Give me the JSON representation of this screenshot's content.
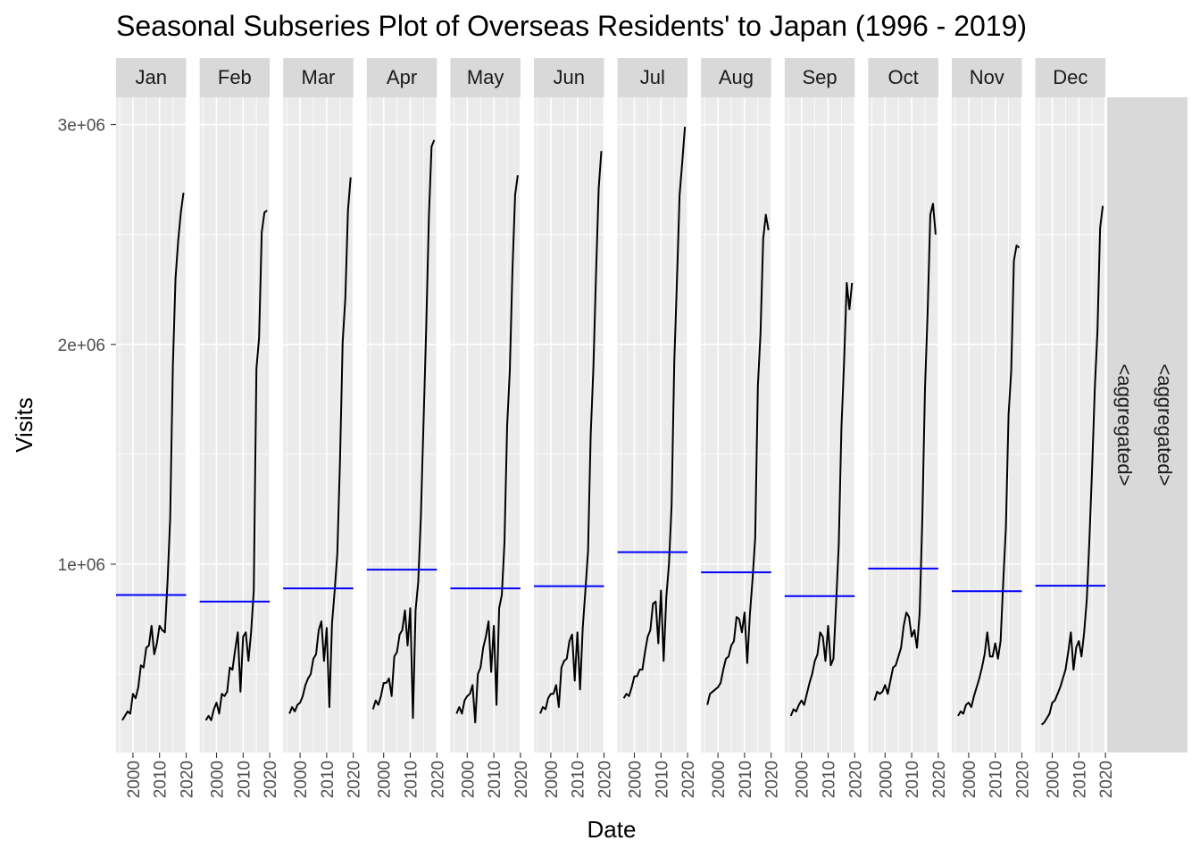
{
  "chart_data": {
    "type": "line",
    "title": "Seasonal Subseries Plot of Overseas Residents' to Japan (1996 - 2019)",
    "xlabel": "Date",
    "ylabel": "Visits",
    "y_ticks": [
      {
        "value": 1000000,
        "label": "1e+06"
      },
      {
        "value": 2000000,
        "label": "2e+06"
      },
      {
        "value": 3000000,
        "label": "3e+06"
      }
    ],
    "x_ticks": [
      {
        "value": 2000,
        "label": "2000"
      },
      {
        "value": 2010,
        "label": "2010"
      },
      {
        "value": 2020,
        "label": "2020"
      }
    ],
    "ylim": [
      150000,
      3120000
    ],
    "xlim": [
      1995,
      2021
    ],
    "grid": true,
    "facet_row_label": "<aggregated>",
    "facet_row_label_2": "<aggregated>",
    "line_color": "#000000",
    "mean_color": "#0000ff",
    "years": [
      1996,
      1997,
      1998,
      1999,
      2000,
      2001,
      2002,
      2003,
      2004,
      2005,
      2006,
      2007,
      2008,
      2009,
      2010,
      2011,
      2012,
      2013,
      2014,
      2015,
      2016,
      2017,
      2018,
      2019
    ],
    "panels": [
      {
        "month": "Jan",
        "mean": 860000,
        "values": [
          290000,
          310000,
          330000,
          320000,
          410000,
          390000,
          440000,
          540000,
          530000,
          620000,
          630000,
          720000,
          590000,
          640000,
          720000,
          700000,
          690000,
          920000,
          1210000,
          1900000,
          2300000,
          2470000,
          2600000,
          2690000
        ]
      },
      {
        "month": "Feb",
        "mean": 830000,
        "values": [
          290000,
          310000,
          290000,
          340000,
          370000,
          320000,
          410000,
          400000,
          420000,
          530000,
          520000,
          610000,
          690000,
          420000,
          670000,
          690000,
          560000,
          690000,
          880000,
          1890000,
          2030000,
          2510000,
          2600000,
          2610000
        ]
      },
      {
        "month": "Mar",
        "mean": 890000,
        "values": [
          320000,
          350000,
          330000,
          360000,
          370000,
          400000,
          450000,
          480000,
          500000,
          570000,
          590000,
          700000,
          740000,
          560000,
          710000,
          350000,
          730000,
          880000,
          1050000,
          1470000,
          2010000,
          2210000,
          2610000,
          2760000
        ]
      },
      {
        "month": "Apr",
        "mean": 975000,
        "values": [
          340000,
          380000,
          360000,
          400000,
          460000,
          460000,
          480000,
          400000,
          580000,
          600000,
          680000,
          700000,
          790000,
          630000,
          800000,
          300000,
          790000,
          920000,
          1220000,
          1650000,
          2080000,
          2580000,
          2900000,
          2930000
        ]
      },
      {
        "month": "May",
        "mean": 890000,
        "values": [
          320000,
          350000,
          320000,
          380000,
          400000,
          410000,
          450000,
          280000,
          500000,
          530000,
          620000,
          670000,
          740000,
          510000,
          720000,
          360000,
          800000,
          860000,
          1100000,
          1630000,
          1880000,
          2340000,
          2680000,
          2770000
        ]
      },
      {
        "month": "Jun",
        "mean": 900000,
        "values": [
          320000,
          350000,
          340000,
          390000,
          410000,
          410000,
          450000,
          350000,
          530000,
          560000,
          570000,
          650000,
          680000,
          470000,
          690000,
          430000,
          710000,
          880000,
          1060000,
          1590000,
          1890000,
          2320000,
          2710000,
          2880000
        ]
      },
      {
        "month": "Jul",
        "mean": 1055000,
        "values": [
          390000,
          410000,
          400000,
          440000,
          490000,
          490000,
          520000,
          520000,
          600000,
          670000,
          700000,
          820000,
          830000,
          640000,
          880000,
          560000,
          850000,
          1000000,
          1270000,
          1920000,
          2290000,
          2680000,
          2830000,
          2990000
        ]
      },
      {
        "month": "Aug",
        "mean": 963000,
        "values": [
          360000,
          410000,
          420000,
          430000,
          440000,
          460000,
          520000,
          570000,
          580000,
          630000,
          650000,
          760000,
          750000,
          690000,
          780000,
          550000,
          770000,
          930000,
          1120000,
          1810000,
          2050000,
          2480000,
          2590000,
          2520000
        ]
      },
      {
        "month": "Sep",
        "mean": 855000,
        "values": [
          310000,
          340000,
          330000,
          360000,
          380000,
          360000,
          410000,
          460000,
          500000,
          560000,
          590000,
          690000,
          670000,
          560000,
          720000,
          540000,
          570000,
          820000,
          1090000,
          1620000,
          1920000,
          2280000,
          2160000,
          2280000
        ]
      },
      {
        "month": "Oct",
        "mean": 980000,
        "values": [
          380000,
          420000,
          410000,
          420000,
          450000,
          410000,
          470000,
          530000,
          540000,
          580000,
          620000,
          720000,
          780000,
          760000,
          670000,
          700000,
          620000,
          780000,
          1210000,
          1800000,
          2150000,
          2590000,
          2640000,
          2500000
        ]
      },
      {
        "month": "Nov",
        "mean": 877000,
        "values": [
          310000,
          330000,
          320000,
          360000,
          370000,
          350000,
          400000,
          440000,
          480000,
          530000,
          590000,
          690000,
          580000,
          580000,
          640000,
          570000,
          650000,
          920000,
          1170000,
          1680000,
          1880000,
          2380000,
          2450000,
          2440000
        ]
      },
      {
        "month": "Dec",
        "mean": 902000,
        "values": [
          270000,
          280000,
          300000,
          320000,
          370000,
          380000,
          410000,
          440000,
          480000,
          520000,
          600000,
          690000,
          520000,
          620000,
          650000,
          580000,
          690000,
          840000,
          1120000,
          1440000,
          1800000,
          2060000,
          2530000,
          2630000
        ]
      }
    ]
  }
}
